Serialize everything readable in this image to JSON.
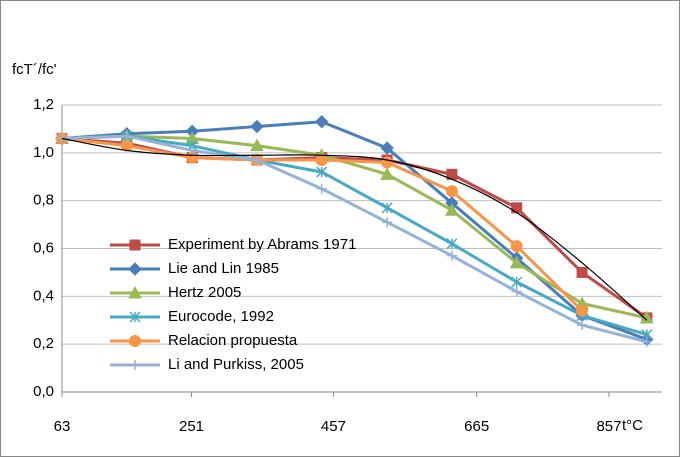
{
  "chart_data": {
    "type": "line",
    "y_label": "fcT´/fc'",
    "x_label": "t°C",
    "x": [
      63,
      157,
      252,
      346,
      440,
      535,
      629,
      723,
      818,
      912
    ],
    "xlim": [
      63,
      934
    ],
    "xticks": [
      63,
      251,
      457,
      665,
      857
    ],
    "ylim": [
      0,
      1.2
    ],
    "yticks": [
      {
        "value": 0,
        "label": "0,0"
      },
      {
        "value": 0.2,
        "label": "0,2"
      },
      {
        "value": 0.4,
        "label": "0,4"
      },
      {
        "value": 0.6,
        "label": "0,6"
      },
      {
        "value": 0.8,
        "label": "0,8"
      },
      {
        "value": 1.0,
        "label": "1,0"
      },
      {
        "value": 1.2,
        "label": "1,2"
      }
    ],
    "grid": true,
    "legend": "lower-left",
    "series": [
      {
        "name": "Experiment by Abrams 1971",
        "color": "#be4b48",
        "marker": "square",
        "values": [
          1.06,
          1.04,
          0.98,
          0.97,
          0.98,
          0.97,
          0.91,
          0.77,
          0.5,
          0.31
        ]
      },
      {
        "name": "Lie and Lin 1985",
        "color": "#4a7ebb",
        "marker": "diamond",
        "values": [
          1.06,
          1.08,
          1.09,
          1.11,
          1.13,
          1.02,
          0.79,
          0.56,
          0.32,
          0.22
        ]
      },
      {
        "name": "Hertz 2005",
        "color": "#98b954",
        "marker": "triangle",
        "values": [
          1.06,
          1.07,
          1.06,
          1.03,
          0.99,
          0.91,
          0.76,
          0.54,
          0.37,
          0.31
        ]
      },
      {
        "name": "Eurocode, 1992",
        "color": "#46aac5",
        "marker": "star",
        "values": [
          1.06,
          1.07,
          1.03,
          0.97,
          0.92,
          0.77,
          0.62,
          0.46,
          0.32,
          0.24
        ]
      },
      {
        "name": "Relacion propuesta",
        "color": "#f79646",
        "marker": "circle",
        "values": [
          1.06,
          1.03,
          0.98,
          0.97,
          0.97,
          0.96,
          0.84,
          0.61,
          0.34,
          null
        ]
      },
      {
        "name": "Li and Purkiss, 2005",
        "color": "#95b3d7",
        "marker": "plus",
        "values": [
          1.06,
          1.07,
          1.01,
          0.97,
          0.85,
          0.71,
          0.57,
          0.42,
          0.28,
          0.21
        ]
      }
    ],
    "trendline": {
      "color": "#000000",
      "values": [
        1.06,
        1.01,
        0.99,
        0.99,
        0.99,
        0.97,
        0.89,
        0.75,
        0.54,
        0.3
      ]
    }
  }
}
